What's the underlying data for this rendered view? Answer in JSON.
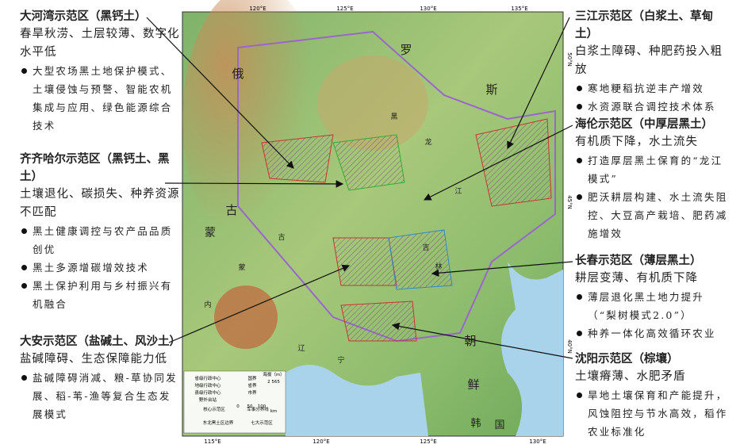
{
  "map": {
    "lon_top": [
      "120°E",
      "125°E",
      "130°E",
      "135°E"
    ],
    "lon_bottom": [
      "115°E",
      "120°E",
      "125°E",
      "130°E"
    ],
    "lat_right": [
      "50°N",
      "45°N",
      "40°N"
    ],
    "place_labels": [
      "俄",
      "罗",
      "斯",
      "蒙",
      "古",
      "朝",
      "鲜",
      "韩",
      "国",
      "黑",
      "龙",
      "江",
      "吉",
      "林",
      "辽",
      "宁",
      "内",
      "蒙",
      "古"
    ],
    "legend": {
      "items": [
        "省级行政中心",
        "地级行政中心",
        "县级行政中心",
        "野外台站",
        "国界",
        "省界",
        "市界",
        "军事分界线",
        "核心示范区",
        "东北黑土区边界",
        "七大示范区"
      ],
      "elevation_title": "海拔（m）",
      "elevation_high": "2 565",
      "scale": [
        "0",
        "50",
        "100",
        "km"
      ]
    }
  },
  "left_panels": [
    {
      "title": "大河湾示范区（黑钙土）",
      "desc": "春旱秋涝、土层较薄、数字化水平低",
      "bullets": [
        "大型农场黑土地保护模式、土壤侵蚀与预警、智能农机集成与应用、绿色能源综合技术"
      ]
    },
    {
      "title": "齐齐哈尔示范区（黑钙土、黑土）",
      "desc": "土壤退化、碳损失、种养资源不匹配",
      "bullets": [
        "黑土健康调控与农产品品质创优",
        "黑土多源增碳增效技术",
        "黑土保护利用与乡村振兴有机融合"
      ]
    },
    {
      "title": "大安示范区（盐碱土、风沙土）",
      "desc": "盐碱障碍、生态保障能力低",
      "bullets": [
        "盐碱障碍消减、粮-草协同发展、稻-苇-渔等复合生态发展模式"
      ]
    }
  ],
  "right_panels": [
    {
      "title": "三江示范区（白浆土、草甸土）",
      "desc": "白浆土障碍、种肥药投入粗放",
      "bullets": [
        "寒地粳稻抗逆丰产增效",
        "水资源联合调控技术体系"
      ]
    },
    {
      "title": "海伦示范区（中厚层黑土）",
      "desc": "有机质下降，水土流失",
      "bullets": [
        "打造厚层黑土保育的“龙江模式”",
        "肥沃耕层构建、水土流失阻控、大豆高产栽培、肥药减施增效"
      ]
    },
    {
      "title": "长春示范区（薄层黑土）",
      "desc": "耕层变薄、有机质下降",
      "bullets": [
        "薄层退化黑土地力提升（“梨树模式2.0”）",
        "种养一体化高效循环农业"
      ]
    },
    {
      "title": "沈阳示范区（棕壤）",
      "desc": "土壤瘠薄、水肥矛盾",
      "bullets": [
        "旱地土壤保育和产能提升，风蚀阻控与节水高效，稻作农业标准化"
      ]
    }
  ]
}
